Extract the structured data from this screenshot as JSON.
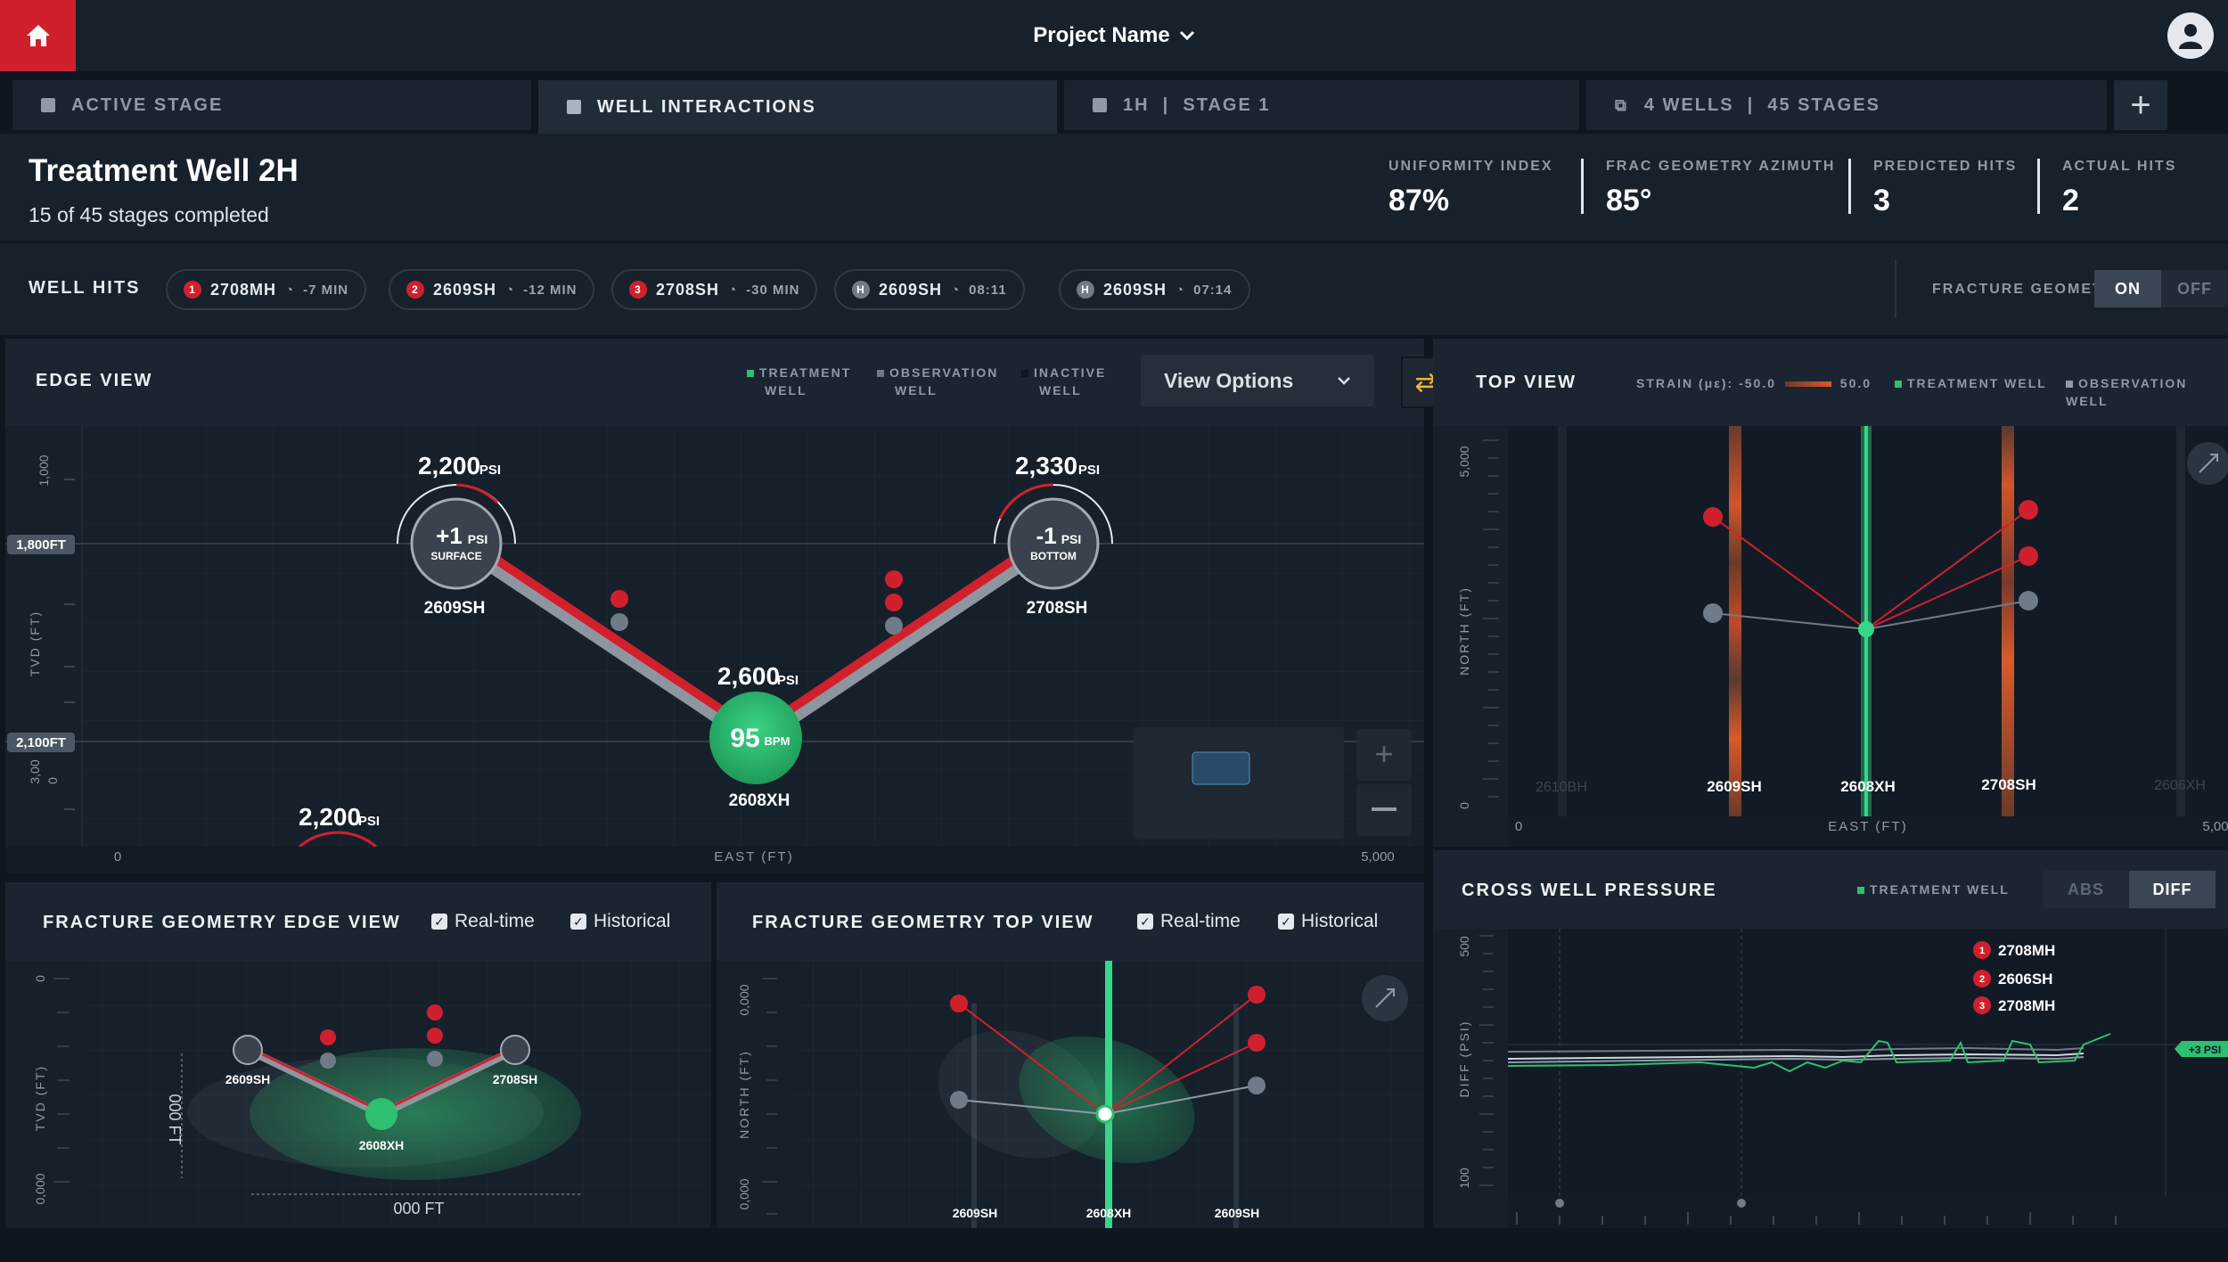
{
  "project": {
    "name": "Project Name"
  },
  "tabs": [
    {
      "label": "ACTIVE STAGE"
    },
    {
      "label": "WELL INTERACTIONS"
    },
    {
      "label": "1H  |  STAGE 1"
    },
    {
      "label": "4 WELLS  |  45 STAGES"
    }
  ],
  "treatment": {
    "title": "Treatment Well 2H",
    "subtitle": "15 of 45 stages completed"
  },
  "metrics": [
    {
      "label": "UNIFORMITY INDEX",
      "value": "87%"
    },
    {
      "label": "FRAC GEOMETRY AZIMUTH",
      "value": "85°"
    },
    {
      "label": "PREDICTED HITS",
      "value": "3"
    },
    {
      "label": "ACTUAL HITS",
      "value": "2"
    }
  ],
  "well_hits": {
    "label": "WELL HITS",
    "items": [
      {
        "badge": "1",
        "name": "2708MH",
        "time": "-7 MIN",
        "kind": "red"
      },
      {
        "badge": "2",
        "name": "2609SH",
        "time": "-12 MIN",
        "kind": "red"
      },
      {
        "badge": "3",
        "name": "2708SH",
        "time": "-30 MIN",
        "kind": "red"
      },
      {
        "badge": "H",
        "name": "2609SH",
        "time": "08:11",
        "kind": "gray"
      },
      {
        "badge": "H",
        "name": "2609SH",
        "time": "07:14",
        "kind": "gray"
      }
    ],
    "fracture_label": "FRACTURE GEOMETRY",
    "on": "ON",
    "off": "OFF"
  },
  "edge_view": {
    "title": "EDGE VIEW",
    "legend": [
      "TREATMENT",
      "WELL",
      "OBSERVATION",
      "WELL",
      "INACTIVE",
      "WELL"
    ],
    "view_options": "View Options",
    "depth_top": "1,800FT",
    "depth_bottom": "2,100FT",
    "yaxis": "TVD (FT)",
    "ytick_top": "1,000",
    "ytick_bottom": "3,00",
    "ytick_zero": "0",
    "xaxis": "EAST (FT)",
    "xmin": "0",
    "xmax": "5,000",
    "psi_unit": "PSI",
    "bpm_unit": "BPM",
    "left_well": {
      "psi": "2,200",
      "delta": "+1",
      "pos": "SURFACE",
      "name": "2609SH"
    },
    "right_well": {
      "psi": "2,330",
      "delta": "-1",
      "pos": "BOTTOM",
      "name": "2708SH"
    },
    "center_well": {
      "psi": "2,600",
      "rate": "95",
      "name": "2608XH"
    },
    "bottom_left_psi": "2,200"
  },
  "top_view": {
    "title": "TOP VIEW",
    "strain_label": "STRAIN (με): -50.0",
    "strain_max": "50.0",
    "legend_treatment": "TREATMENT WELL",
    "legend_observation": "OBSERVATION WELL",
    "yaxis": "NORTH (FT)",
    "ytick": "5,000",
    "yzero": "0",
    "xaxis": "EAST (FT)",
    "xmin": "0",
    "xmax": "5,00",
    "wells": [
      "2610BH",
      "2609SH",
      "2608XH",
      "2708SH",
      "2606XH"
    ]
  },
  "frac_edge": {
    "title": "FRACTURE GEOMETRY EDGE VIEW",
    "realtime": "Real-time",
    "historical": "Historical",
    "yaxis": "TVD (FT)",
    "ytop": "0",
    "ybottom": "0,000",
    "height_label": "000 FT",
    "width_label": "000 FT",
    "wells": [
      "2609SH",
      "2708SH",
      "2608XH"
    ]
  },
  "frac_top": {
    "title": "FRACTURE GEOMETRY TOP VIEW",
    "realtime": "Real-time",
    "historical": "Historical",
    "yaxis": "NORTH (FT)",
    "ytop": "0,000",
    "ymid": "0,000",
    "ybottom": "0,000",
    "wells": [
      "2609SH",
      "2608XH",
      "2609SH"
    ]
  },
  "cross_well": {
    "title": "CROSS WELL PRESSURE",
    "legend": "TREATMENT WELL",
    "abs": "ABS",
    "diff": "DIFF",
    "yaxis": "DIFF (PSI)",
    "ytop": "500",
    "ybottom": "100",
    "marker": "+3 PSI",
    "series": [
      {
        "badge": "1",
        "name": "2708MH"
      },
      {
        "badge": "2",
        "name": "2606SH"
      },
      {
        "badge": "3",
        "name": "2708MH"
      }
    ]
  },
  "colors": {
    "red": "#d0202e",
    "green": "#2fbf71",
    "panel": "#16202b",
    "accent": "#f0b532"
  },
  "icons": {
    "home": "home-icon",
    "user": "user-icon",
    "chevron": "chevron-down-icon",
    "swap": "swap-icon",
    "compass": "compass-icon",
    "clock": "clock-icon"
  }
}
